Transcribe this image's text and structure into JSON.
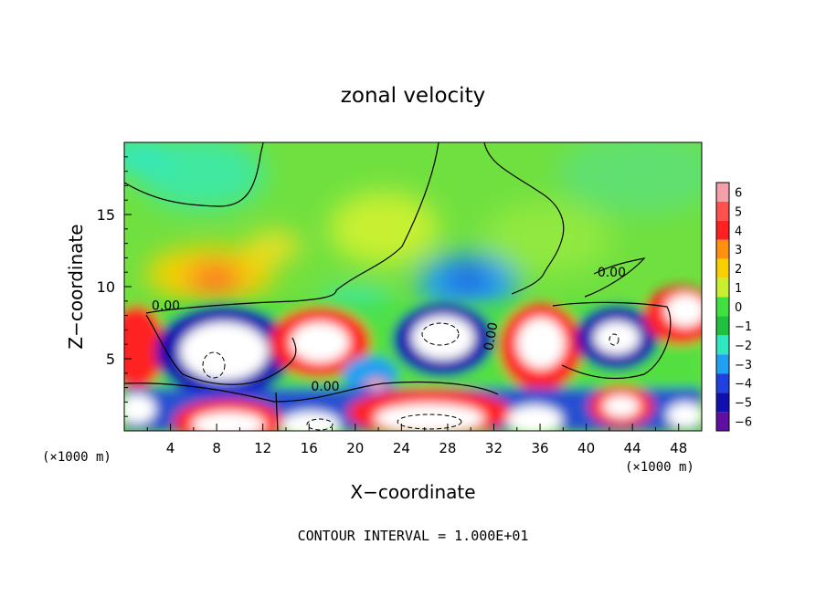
{
  "chart_data": {
    "type": "heatmap",
    "title": "zonal velocity",
    "xlabel": "X−coordinate",
    "ylabel": "Z−coordinate",
    "x_unit_left": "(×1000 m)",
    "x_unit_right": "(×1000 m)",
    "footer": "CONTOUR INTERVAL = 1.000E+01",
    "xlim": [
      0,
      50
    ],
    "ylim": [
      0,
      20
    ],
    "x_ticks": [
      4,
      8,
      12,
      16,
      20,
      24,
      28,
      32,
      36,
      40,
      44,
      48
    ],
    "x_tick_labels": [
      "4",
      "8",
      "12",
      "16",
      "20",
      "24",
      "28",
      "32",
      "36",
      "40",
      "44",
      "48"
    ],
    "y_ticks": [
      5,
      10,
      15
    ],
    "y_tick_labels": [
      "5",
      "10",
      "15"
    ],
    "colorbar": {
      "levels": [
        6,
        5,
        4,
        3,
        2,
        1,
        0,
        -1,
        -2,
        -3,
        -4,
        -5,
        -6
      ],
      "labels": [
        "6",
        "5",
        "4",
        "3",
        "2",
        "1",
        "0",
        "−1",
        "−2",
        "−3",
        "−4",
        "−5",
        "−6"
      ],
      "colors": [
        "#f4a0a8",
        "#ff5050",
        "#ff2020",
        "#ff9010",
        "#f8d000",
        "#c8f030",
        "#40e040",
        "#20c040",
        "#30e8c0",
        "#20a0f0",
        "#2040e0",
        "#1010b0",
        "#6010a0"
      ]
    },
    "contour_labels": [
      {
        "text": "0.00",
        "x": 3.6,
        "z": 8.4
      },
      {
        "text": "0.00",
        "x": 17.4,
        "z": 2.8
      },
      {
        "text": "0.00",
        "x": 32.1,
        "z": 6.5
      },
      {
        "text": "0.00",
        "x": 42.2,
        "z": 10.7
      }
    ]
  }
}
